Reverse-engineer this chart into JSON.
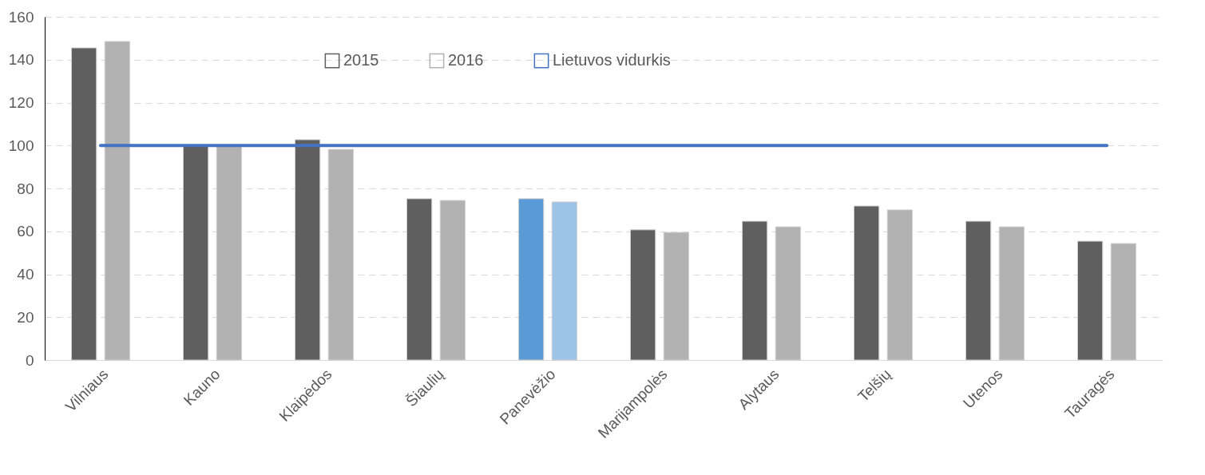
{
  "chart_data": {
    "type": "bar",
    "categories": [
      "Vilniaus",
      "Kauno",
      "Klaipėdos",
      "Šiaulių",
      "Panevėžio",
      "Marijampolės",
      "Alytaus",
      "Telšių",
      "Utenos",
      "Tauragės"
    ],
    "series": [
      {
        "name": "2015",
        "color": "#5f5f5f",
        "colors": [
          "#5f5f5f",
          "#5f5f5f",
          "#5f5f5f",
          "#5f5f5f",
          "#5b9bd5",
          "#5f5f5f",
          "#5f5f5f",
          "#5f5f5f",
          "#5f5f5f",
          "#5f5f5f"
        ],
        "values": [
          145.5,
          100,
          102.7,
          75.2,
          75.2,
          60.7,
          64.7,
          71.8,
          64.7,
          55.4
        ]
      },
      {
        "name": "2016",
        "color": "#b2b2b2",
        "colors": [
          "#b2b2b2",
          "#b2b2b2",
          "#b2b2b2",
          "#b2b2b2",
          "#9dc3e6",
          "#b2b2b2",
          "#b2b2b2",
          "#b2b2b2",
          "#b2b2b2",
          "#b2b2b2"
        ],
        "values": [
          148.5,
          99.5,
          98.2,
          74.4,
          73.7,
          59.5,
          62.1,
          70,
          62.1,
          54.3
        ]
      },
      {
        "name": "Lietuvos vidurkis",
        "type": "line",
        "color": "#4472c4",
        "values": [
          100,
          100,
          100,
          100,
          100,
          100,
          100,
          100,
          100,
          100
        ]
      }
    ],
    "ylim": [
      0,
      160
    ],
    "yticks": [
      0,
      20,
      40,
      60,
      80,
      100,
      120,
      140,
      160
    ],
    "grid": "y",
    "legend": "top",
    "marker": "none",
    "line_style": "solid"
  }
}
